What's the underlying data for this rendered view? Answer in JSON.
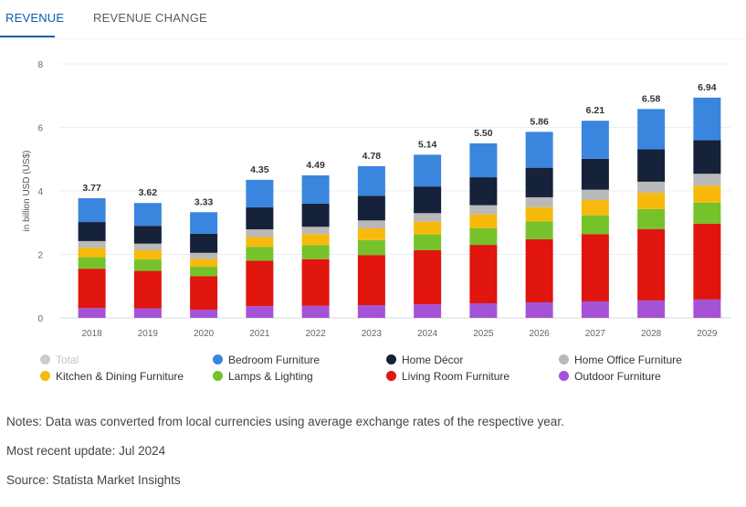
{
  "tabs": {
    "revenue": "REVENUE",
    "revenue_change": "REVENUE CHANGE"
  },
  "chart_data": {
    "type": "bar",
    "stacked": true,
    "ylabel": "in billion USD (US$)",
    "ylim": [
      0,
      8
    ],
    "yticks": [
      "0",
      "2",
      "4",
      "6",
      "8"
    ],
    "categories": [
      "2018",
      "2019",
      "2020",
      "2021",
      "2022",
      "2023",
      "2024",
      "2025",
      "2026",
      "2027",
      "2028",
      "2029"
    ],
    "totals": [
      "3.77",
      "3.62",
      "3.33",
      "4.35",
      "4.49",
      "4.78",
      "5.14",
      "5.50",
      "5.86",
      "6.21",
      "6.58",
      "6.94"
    ],
    "series": [
      {
        "name": "Outdoor Furniture",
        "color": "#a453d6",
        "values": [
          0.31,
          0.3,
          0.26,
          0.37,
          0.38,
          0.4,
          0.43,
          0.46,
          0.49,
          0.52,
          0.55,
          0.58
        ]
      },
      {
        "name": "Living Room Furniture",
        "color": "#e0150e",
        "values": [
          1.24,
          1.18,
          1.05,
          1.43,
          1.47,
          1.58,
          1.7,
          1.84,
          1.99,
          2.12,
          2.25,
          2.39
        ]
      },
      {
        "name": "Lamps & Lighting",
        "color": "#76c22b",
        "values": [
          0.36,
          0.36,
          0.3,
          0.44,
          0.44,
          0.47,
          0.5,
          0.53,
          0.56,
          0.59,
          0.63,
          0.66
        ]
      },
      {
        "name": "Kitchen & Dining Furniture",
        "color": "#f7b90c",
        "values": [
          0.3,
          0.29,
          0.25,
          0.31,
          0.35,
          0.37,
          0.4,
          0.43,
          0.45,
          0.48,
          0.51,
          0.54
        ]
      },
      {
        "name": "Home Office Furniture",
        "color": "#b9b9b9",
        "values": [
          0.21,
          0.21,
          0.19,
          0.24,
          0.23,
          0.25,
          0.27,
          0.29,
          0.31,
          0.33,
          0.35,
          0.37
        ]
      },
      {
        "name": "Home Décor",
        "color": "#16213a",
        "values": [
          0.6,
          0.56,
          0.6,
          0.69,
          0.73,
          0.78,
          0.84,
          0.88,
          0.93,
          0.97,
          1.02,
          1.06
        ]
      },
      {
        "name": "Bedroom Furniture",
        "color": "#3a86de",
        "values": [
          0.75,
          0.72,
          0.68,
          0.87,
          0.89,
          0.93,
          1.0,
          1.07,
          1.13,
          1.2,
          1.27,
          1.34
        ]
      }
    ],
    "legend": [
      {
        "label": "Total",
        "color": "#cccccc",
        "muted": true
      },
      {
        "label": "Bedroom Furniture",
        "color": "#3a86de"
      },
      {
        "label": "Home Décor",
        "color": "#16213a"
      },
      {
        "label": "Home Office Furniture",
        "color": "#b9b9b9"
      },
      {
        "label": "Kitchen & Dining Furniture",
        "color": "#f7b90c"
      },
      {
        "label": "Lamps & Lighting",
        "color": "#76c22b"
      },
      {
        "label": "Living Room Furniture",
        "color": "#e0150e"
      },
      {
        "label": "Outdoor Furniture",
        "color": "#a453d6"
      }
    ]
  },
  "notes": {
    "note": "Notes: Data was converted from local currencies using average exchange rates of the respective year.",
    "update": "Most recent update: Jul 2024",
    "source": "Source: Statista Market Insights"
  }
}
